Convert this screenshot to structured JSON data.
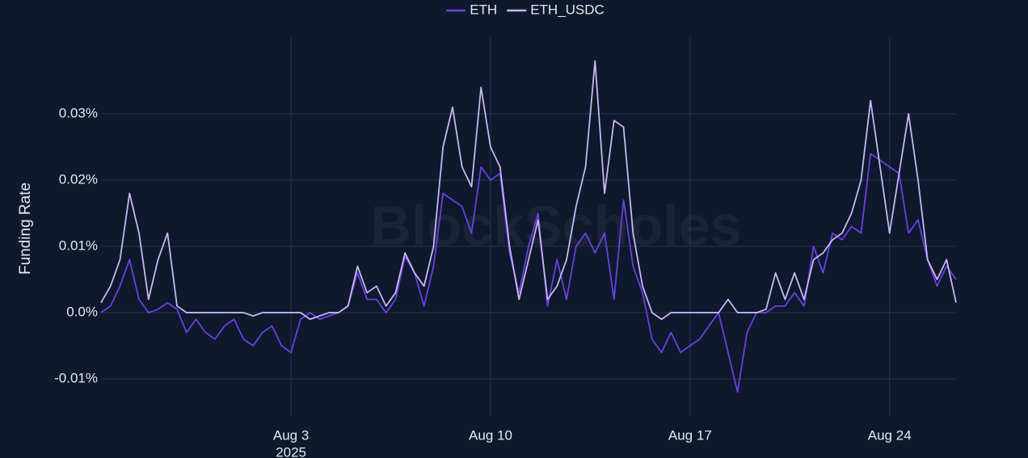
{
  "chart_data": {
    "type": "line",
    "watermark": "BlockScholes",
    "y_label": "Funding Rate",
    "x_year": "2025",
    "x": [
      "2025-07-27T08:00",
      "2025-07-27T16:00",
      "2025-07-28T00:00",
      "2025-07-28T08:00",
      "2025-07-28T16:00",
      "2025-07-29T00:00",
      "2025-07-29T08:00",
      "2025-07-29T16:00",
      "2025-07-30T00:00",
      "2025-07-30T08:00",
      "2025-07-30T16:00",
      "2025-07-31T00:00",
      "2025-07-31T08:00",
      "2025-07-31T16:00",
      "2025-08-01T00:00",
      "2025-08-01T08:00",
      "2025-08-01T16:00",
      "2025-08-02T00:00",
      "2025-08-02T08:00",
      "2025-08-02T16:00",
      "2025-08-03T00:00",
      "2025-08-03T08:00",
      "2025-08-03T16:00",
      "2025-08-04T00:00",
      "2025-08-04T08:00",
      "2025-08-04T16:00",
      "2025-08-05T00:00",
      "2025-08-05T08:00",
      "2025-08-05T16:00",
      "2025-08-06T00:00",
      "2025-08-06T08:00",
      "2025-08-06T16:00",
      "2025-08-07T00:00",
      "2025-08-07T08:00",
      "2025-08-07T16:00",
      "2025-08-08T00:00",
      "2025-08-08T08:00",
      "2025-08-08T16:00",
      "2025-08-09T00:00",
      "2025-08-09T08:00",
      "2025-08-09T16:00",
      "2025-08-10T00:00",
      "2025-08-10T08:00",
      "2025-08-10T16:00",
      "2025-08-11T00:00",
      "2025-08-11T08:00",
      "2025-08-11T16:00",
      "2025-08-12T00:00",
      "2025-08-12T08:00",
      "2025-08-12T16:00",
      "2025-08-13T00:00",
      "2025-08-13T08:00",
      "2025-08-13T16:00",
      "2025-08-14T00:00",
      "2025-08-14T08:00",
      "2025-08-14T16:00",
      "2025-08-15T00:00",
      "2025-08-15T08:00",
      "2025-08-15T16:00",
      "2025-08-16T00:00",
      "2025-08-16T08:00",
      "2025-08-16T16:00",
      "2025-08-17T00:00",
      "2025-08-17T08:00",
      "2025-08-17T16:00",
      "2025-08-18T00:00",
      "2025-08-18T08:00",
      "2025-08-18T16:00",
      "2025-08-19T00:00",
      "2025-08-19T08:00",
      "2025-08-19T16:00",
      "2025-08-20T00:00",
      "2025-08-20T08:00",
      "2025-08-20T16:00",
      "2025-08-21T00:00",
      "2025-08-21T08:00",
      "2025-08-21T16:00",
      "2025-08-22T00:00",
      "2025-08-22T08:00",
      "2025-08-22T16:00",
      "2025-08-23T00:00",
      "2025-08-23T08:00",
      "2025-08-23T16:00",
      "2025-08-24T00:00",
      "2025-08-24T08:00",
      "2025-08-24T16:00",
      "2025-08-25T00:00",
      "2025-08-25T08:00",
      "2025-08-25T16:00",
      "2025-08-26T00:00",
      "2025-08-26T08:00"
    ],
    "series": [
      {
        "name": "ETH",
        "color": "#6b3fe0",
        "values": [
          0,
          0.001,
          0.004,
          0.008,
          0.002,
          0,
          0.0005,
          0.0015,
          0.0005,
          -0.003,
          -0.001,
          -0.003,
          -0.004,
          -0.002,
          -0.001,
          -0.004,
          -0.005,
          -0.003,
          -0.002,
          -0.005,
          -0.006,
          -0.001,
          0,
          -0.001,
          -0.0005,
          0,
          0.001,
          0.006,
          0.002,
          0.002,
          0,
          0.002,
          0.0085,
          0.006,
          0.001,
          0.007,
          0.018,
          0.017,
          0.016,
          0.012,
          0.022,
          0.02,
          0.021,
          0.009,
          0.003,
          0.01,
          0.015,
          0.001,
          0.008,
          0.002,
          0.01,
          0.012,
          0.009,
          0.012,
          0.002,
          0.017,
          0.007,
          0.003,
          -0.004,
          -0.006,
          -0.003,
          -0.006,
          -0.005,
          -0.004,
          -0.002,
          0,
          -0.006,
          -0.012,
          -0.003,
          0,
          0,
          0.001,
          0.001,
          0.003,
          0.001,
          0.01,
          0.006,
          0.012,
          0.011,
          0.013,
          0.012,
          0.024,
          0.023,
          0.022,
          0.021,
          0.012,
          0.014,
          0.008,
          0.004,
          0.007,
          0.005
        ]
      },
      {
        "name": "ETH_USDC",
        "color": "#c9b6f2",
        "values": [
          0.0015,
          0.004,
          0.008,
          0.018,
          0.012,
          0.002,
          0.008,
          0.012,
          0.001,
          0,
          0,
          0,
          0,
          0,
          0,
          0,
          -0.0005,
          0,
          0,
          0,
          0,
          0,
          -0.001,
          -0.0005,
          0,
          0,
          0.001,
          0.007,
          0.003,
          0.004,
          0.001,
          0.003,
          0.009,
          0.006,
          0.004,
          0.01,
          0.025,
          0.031,
          0.022,
          0.019,
          0.034,
          0.025,
          0.022,
          0.01,
          0.002,
          0.008,
          0.014,
          0.002,
          0.004,
          0.008,
          0.016,
          0.022,
          0.038,
          0.018,
          0.029,
          0.028,
          0.012,
          0.004,
          0,
          -0.001,
          0,
          0,
          0,
          0,
          0,
          0,
          0.002,
          0,
          0,
          0,
          0.0005,
          0.006,
          0.002,
          0.006,
          0.002,
          0.008,
          0.009,
          0.011,
          0.012,
          0.015,
          0.02,
          0.032,
          0.022,
          0.012,
          0.021,
          0.03,
          0.02,
          0.008,
          0.005,
          0.008,
          0.0015
        ]
      }
    ],
    "xlim": [
      "2025-07-27T08:00",
      "2025-08-26T08:00"
    ],
    "xticks": [
      {
        "value": "2025-08-03T00:00",
        "label": "Aug 3"
      },
      {
        "value": "2025-08-10T00:00",
        "label": "Aug 10"
      },
      {
        "value": "2025-08-17T00:00",
        "label": "Aug 17"
      },
      {
        "value": "2025-08-24T00:00",
        "label": "Aug 24"
      }
    ],
    "ylim": [
      -0.0156,
      0.0417
    ],
    "yticks": [
      {
        "value": -0.01,
        "label": "-0.01%"
      },
      {
        "value": 0,
        "label": "0.0%"
      },
      {
        "value": 0.01,
        "label": "0.01%"
      },
      {
        "value": 0.02,
        "label": "0.02%"
      },
      {
        "value": 0.03,
        "label": "0.03%"
      }
    ],
    "grid": true,
    "legend": "top"
  }
}
